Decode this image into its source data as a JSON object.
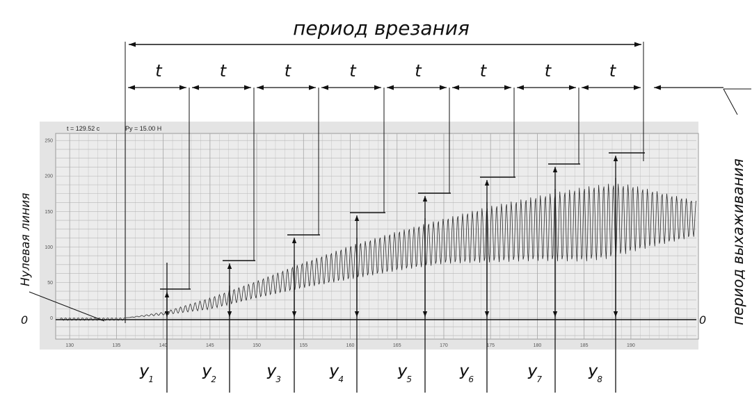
{
  "title": "период врезания",
  "period_symbol": "t",
  "readout": {
    "time": "t = 129.52 с",
    "force": "Py = 15.00 Н"
  },
  "left_label": "Нулевая линия",
  "right_label": "период выхаживания",
  "zero_label": "0",
  "chart_data": {
    "type": "line",
    "x_ticks": [
      130,
      135,
      140,
      145,
      150,
      155,
      160,
      165,
      170,
      175,
      180,
      185,
      190
    ],
    "y_ticks": [
      0,
      50,
      100,
      150,
      200,
      250
    ],
    "xlim": [
      128.5,
      197
    ],
    "ylim": [
      -30,
      260
    ],
    "grid": true,
    "deflection_labels": [
      "У1",
      "У2",
      "У3",
      "У4",
      "У5",
      "У6",
      "У7",
      "У8"
    ]
  },
  "colors": {
    "ink": "#111111",
    "plot_bg": "#e4e4e4",
    "grid": "#b8b8b8",
    "signal": "#2a2a2a"
  }
}
